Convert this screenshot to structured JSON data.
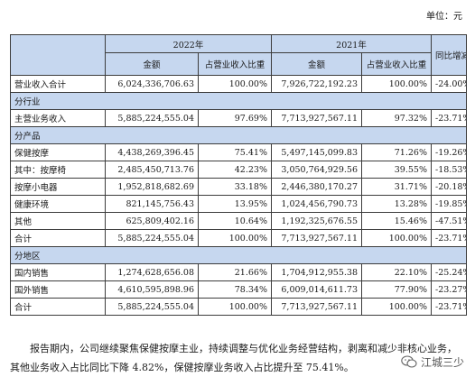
{
  "unit_label": "单位：元",
  "header": {
    "year_2022": "2022年",
    "year_2021": "2021年",
    "yoy": "同比增减",
    "amount": "金额",
    "share": "占营业收入比重"
  },
  "rows": {
    "total_revenue": {
      "label": "营业收入合计",
      "a22": "6,024,336,706.63",
      "s22": "100.00%",
      "a21": "7,926,722,192.23",
      "s21": "100.00%",
      "yoy": "-24.00%"
    },
    "sec_industry": {
      "label": "分行业"
    },
    "main_business": {
      "label": "主营业务收入",
      "a22": "5,885,224,555.04",
      "s22": "97.69%",
      "a21": "7,713,927,567.11",
      "s21": "97.32%",
      "yoy": "-23.71%"
    },
    "sec_product": {
      "label": "分产品"
    },
    "health_massage": {
      "label": "保健按摩",
      "a22": "4,438,269,396.45",
      "s22": "75.41%",
      "a21": "5,497,145,099.83",
      "s21": "71.26%",
      "yoy": "-19.26%"
    },
    "massage_chair": {
      "label": "其中：按摩椅",
      "a22": "2,485,450,713.76",
      "s22": "42.23%",
      "a21": "3,050,764,929.56",
      "s21": "39.55%",
      "yoy": "-18.53%"
    },
    "small_appliance": {
      "label": "按摩小电器",
      "a22": "1,952,818,682.69",
      "s22": "33.18%",
      "a21": "2,446,380,170.27",
      "s21": "31.71%",
      "yoy": "-20.18%"
    },
    "health_env": {
      "label": "健康环境",
      "a22": "821,145,756.43",
      "s22": "13.95%",
      "a21": "1,024,456,790.73",
      "s21": "13.28%",
      "yoy": "-19.85%"
    },
    "other": {
      "label": "其他",
      "a22": "625,809,402.16",
      "s22": "10.64%",
      "a21": "1,192,325,676.55",
      "s21": "15.46%",
      "yoy": "-47.51%"
    },
    "product_total": {
      "label": "合计",
      "a22": "5,885,224,555.04",
      "s22": "100.00%",
      "a21": "7,713,927,567.11",
      "s21": "100.00%",
      "yoy": "-23.71%"
    },
    "sec_region": {
      "label": "分地区"
    },
    "domestic": {
      "label": "国内销售",
      "a22": "1,274,628,656.08",
      "s22": "21.66%",
      "a21": "1,704,912,955.38",
      "s21": "22.10%",
      "yoy": "-25.24%"
    },
    "overseas": {
      "label": "国外销售",
      "a22": "4,610,595,898.96",
      "s22": "78.34%",
      "a21": "6,009,014,611.73",
      "s21": "77.90%",
      "yoy": "-23.27%"
    },
    "region_total": {
      "label": "合计",
      "a22": "5,885,224,555.04",
      "s22": "100.00%",
      "a21": "7,713,927,567.11",
      "s21": "100.00%",
      "yoy": "-23.71%"
    }
  },
  "paragraph": {
    "line1": "报告期内，公司继续聚焦保健按摩主业，持续调整与优化业务经营结构，剥离和减少非核心业务，",
    "line2": "其他业务收入占比同比下降 4.82%，保健按摩业务收入占比提升至 75.41%。"
  },
  "watermark": {
    "text": "江城三少",
    "icon": "wechat-icon"
  }
}
